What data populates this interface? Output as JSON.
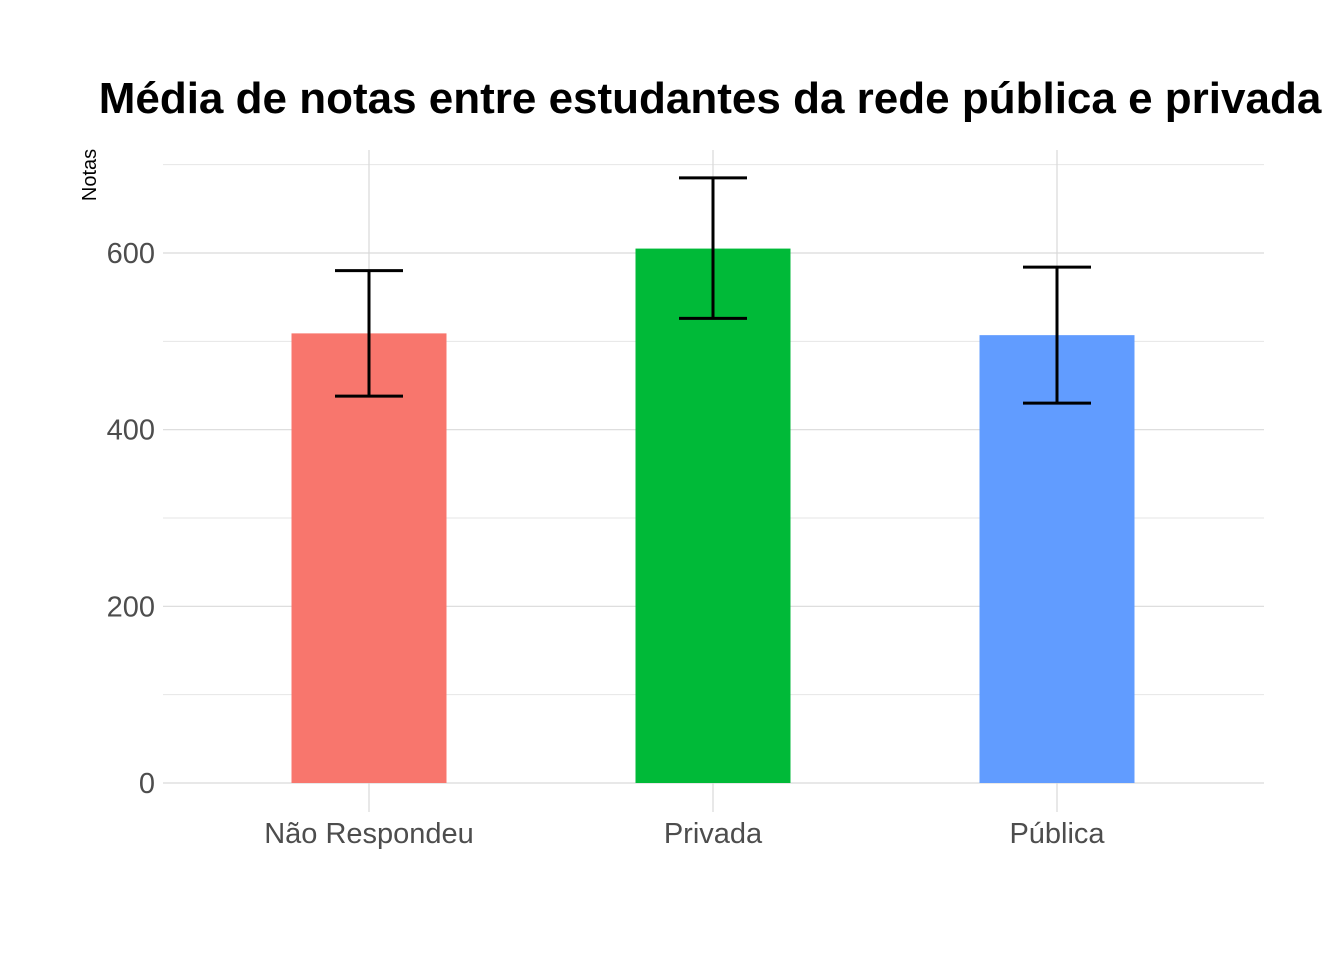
{
  "chart_data": {
    "type": "bar",
    "title": "Média de notas entre estudantes da rede pública e privada",
    "xlabel": "",
    "ylabel": "Notas",
    "categories": [
      "Não Respondeu",
      "Privada",
      "Pública"
    ],
    "values": [
      509,
      605,
      507
    ],
    "error_low": [
      438,
      526,
      430
    ],
    "error_high": [
      580,
      685,
      584
    ],
    "colors": [
      "#F8766D",
      "#00BA38",
      "#619CFF"
    ],
    "ylim": [
      0,
      700
    ],
    "yticks": [
      0,
      200,
      400,
      600
    ],
    "yticks_labels": [
      "0",
      "200",
      "400",
      "600"
    ],
    "grid": true,
    "legend": "none"
  }
}
